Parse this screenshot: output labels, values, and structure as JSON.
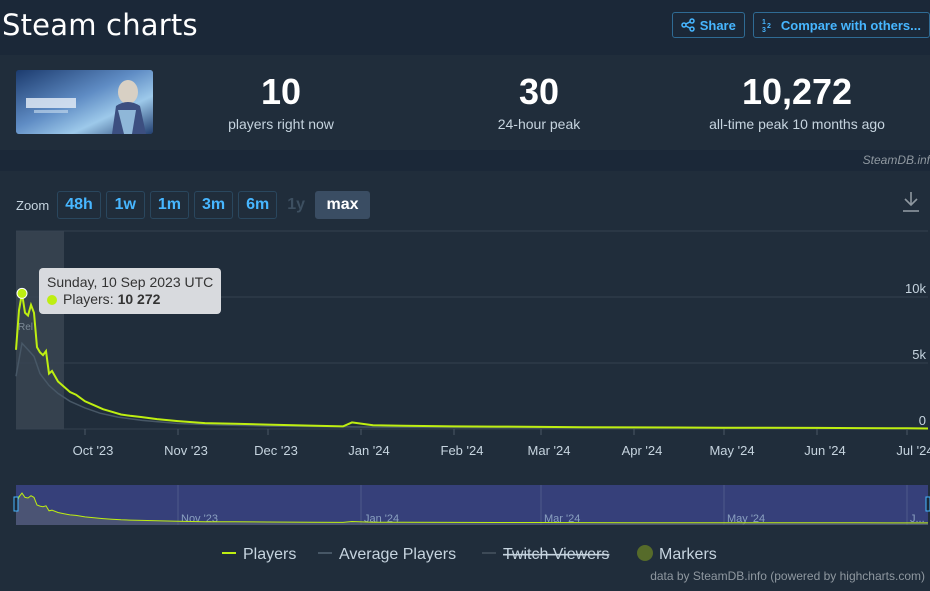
{
  "header": {
    "title": "Steam charts",
    "share_label": "Share",
    "compare_label": "Compare with others..."
  },
  "stats": [
    {
      "value": "10",
      "label": "players right now"
    },
    {
      "value": "30",
      "label": "24-hour peak"
    },
    {
      "value": "10,272",
      "label": "all-time peak 10 months ago"
    }
  ],
  "steamdb_note": "SteamDB.inf",
  "zoom": {
    "label": "Zoom",
    "buttons": [
      {
        "label": "48h",
        "state": "enabled"
      },
      {
        "label": "1w",
        "state": "enabled"
      },
      {
        "label": "1m",
        "state": "enabled"
      },
      {
        "label": "3m",
        "state": "enabled"
      },
      {
        "label": "6m",
        "state": "enabled"
      },
      {
        "label": "1y",
        "state": "disabled"
      },
      {
        "label": "max",
        "state": "active"
      }
    ]
  },
  "tooltip": {
    "date": "Sunday, 10 Sep 2023 UTC",
    "series": "Players",
    "value": "10 272"
  },
  "release_marker_label": "Rel",
  "legend": [
    {
      "name": "Players",
      "color": "#beee11",
      "visible": true,
      "shape": "line"
    },
    {
      "name": "Average Players",
      "color": "#475766",
      "visible": true,
      "shape": "line"
    },
    {
      "name": "Twitch Viewers",
      "color": "#475766",
      "visible": false,
      "shape": "line"
    },
    {
      "name": "Markers",
      "color": "#566b2a",
      "visible": true,
      "shape": "dot"
    }
  ],
  "credit": "data by SteamDB.info (powered by highcharts.com)",
  "navigator_labels": [
    "Nov '23",
    "Jan '24",
    "Mar '24",
    "May '24",
    "J..."
  ],
  "colors": {
    "players_line": "#beee11",
    "average_line": "#475766",
    "accent_blue": "#47b6ff",
    "background": "#1b2838",
    "panel": "#202d3b",
    "navigator_selection": "#36407a"
  },
  "chart_data": {
    "type": "line",
    "title": "",
    "xlabel": "",
    "ylabel": "",
    "x_tick_labels": [
      "Oct '23",
      "Nov '23",
      "Dec '23",
      "Jan '24",
      "Feb '24",
      "Mar '24",
      "Apr '24",
      "May '24",
      "Jun '24",
      "Jul '24"
    ],
    "y_tick_labels": [
      "0",
      "5k",
      "10k"
    ],
    "ylim": [
      0,
      15000
    ],
    "xlim": [
      "2023-09-08",
      "2024-07-08"
    ],
    "grid": true,
    "legend_position": "bottom",
    "series": [
      {
        "name": "Players",
        "x": [
          "2023-09-08",
          "2023-09-09",
          "2023-09-10",
          "2023-09-11",
          "2023-09-12",
          "2023-09-13",
          "2023-09-14",
          "2023-09-15",
          "2023-09-16",
          "2023-09-17",
          "2023-09-18",
          "2023-09-19",
          "2023-09-20",
          "2023-09-22",
          "2023-09-24",
          "2023-09-26",
          "2023-09-28",
          "2023-10-01",
          "2023-10-04",
          "2023-10-07",
          "2023-10-10",
          "2023-10-13",
          "2023-10-16",
          "2023-10-20",
          "2023-10-25",
          "2023-11-01",
          "2023-11-10",
          "2023-11-20",
          "2023-12-01",
          "2023-12-15",
          "2023-12-26",
          "2023-12-29",
          "2024-01-05",
          "2024-01-15",
          "2024-02-01",
          "2024-02-15",
          "2024-03-01",
          "2024-03-15",
          "2024-04-01",
          "2024-04-15",
          "2024-05-01",
          "2024-05-15",
          "2024-06-01",
          "2024-06-15",
          "2024-07-01",
          "2024-07-08"
        ],
        "values": [
          6000,
          9000,
          10272,
          8800,
          8600,
          9400,
          8800,
          6200,
          5800,
          5600,
          5900,
          4200,
          4400,
          3600,
          3200,
          2800,
          2600,
          2100,
          1800,
          1500,
          1300,
          1100,
          1000,
          900,
          750,
          600,
          450,
          400,
          330,
          260,
          200,
          500,
          280,
          250,
          200,
          180,
          160,
          140,
          120,
          110,
          100,
          90,
          80,
          70,
          50,
          40
        ]
      },
      {
        "name": "Average Players",
        "x": [
          "2023-09-08",
          "2023-09-10",
          "2023-09-12",
          "2023-09-14",
          "2023-09-16",
          "2023-09-19",
          "2023-09-22",
          "2023-09-26",
          "2023-10-01",
          "2023-10-06",
          "2023-10-12",
          "2023-10-20",
          "2023-11-01",
          "2023-11-15",
          "2023-12-01",
          "2024-01-01",
          "2024-03-01",
          "2024-07-08"
        ],
        "values": [
          4000,
          6500,
          6000,
          5500,
          4200,
          3300,
          2700,
          2100,
          1600,
          1200,
          900,
          650,
          420,
          300,
          220,
          150,
          90,
          30
        ]
      }
    ]
  }
}
